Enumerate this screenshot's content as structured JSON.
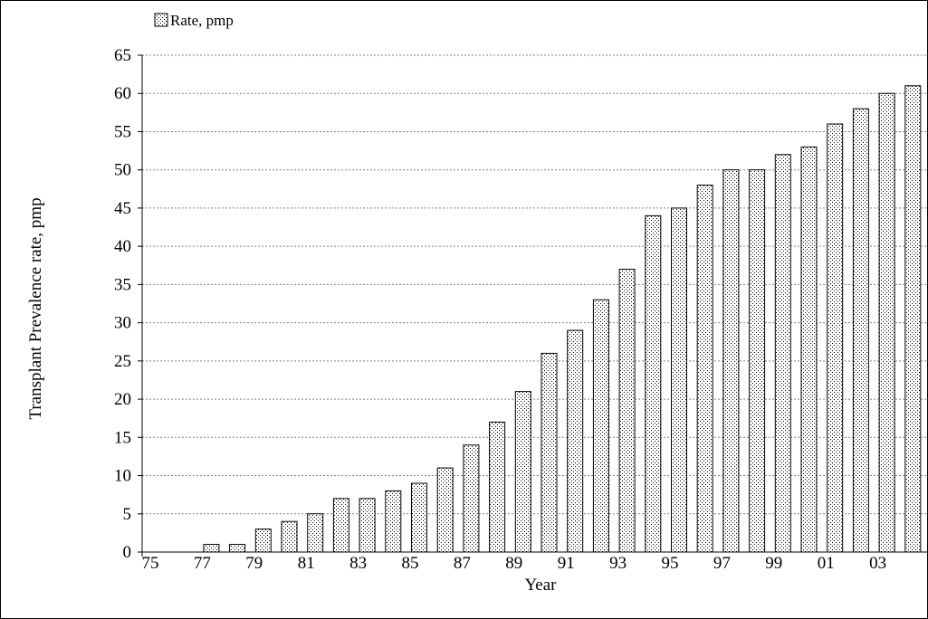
{
  "chart_data": {
    "type": "bar",
    "legend": {
      "label": "Rate, pmp",
      "placement": "top-left"
    },
    "xlabel": "Year",
    "ylabel": "Transplant Prevalence rate, pmp",
    "ylim": [
      0,
      65
    ],
    "yticks": [
      0,
      5,
      10,
      15,
      20,
      25,
      30,
      35,
      40,
      45,
      50,
      55,
      60,
      65
    ],
    "xtick_labels": [
      "75",
      "77",
      "79",
      "81",
      "83",
      "85",
      "87",
      "89",
      "91",
      "93",
      "95",
      "97",
      "99",
      "01",
      "03"
    ],
    "grid": true,
    "categories": [
      "75",
      "76",
      "77",
      "78",
      "79",
      "80",
      "81",
      "82",
      "83",
      "84",
      "85",
      "86",
      "87",
      "88",
      "89",
      "90",
      "91",
      "92",
      "93",
      "94",
      "95",
      "96",
      "97",
      "98",
      "99",
      "00",
      "01",
      "02",
      "03",
      "04"
    ],
    "series": [
      {
        "name": "Rate, pmp",
        "values": [
          0,
          0,
          1,
          1,
          3,
          4,
          5,
          7,
          7,
          8,
          9,
          11,
          14,
          17,
          21,
          26,
          29,
          33,
          37,
          44,
          45,
          48,
          50,
          50,
          52,
          53,
          56,
          58,
          60,
          61
        ]
      }
    ],
    "colors": {
      "bar_fill_pattern": "dotted",
      "bar_stroke": "#000000",
      "grid": "#808080"
    }
  }
}
